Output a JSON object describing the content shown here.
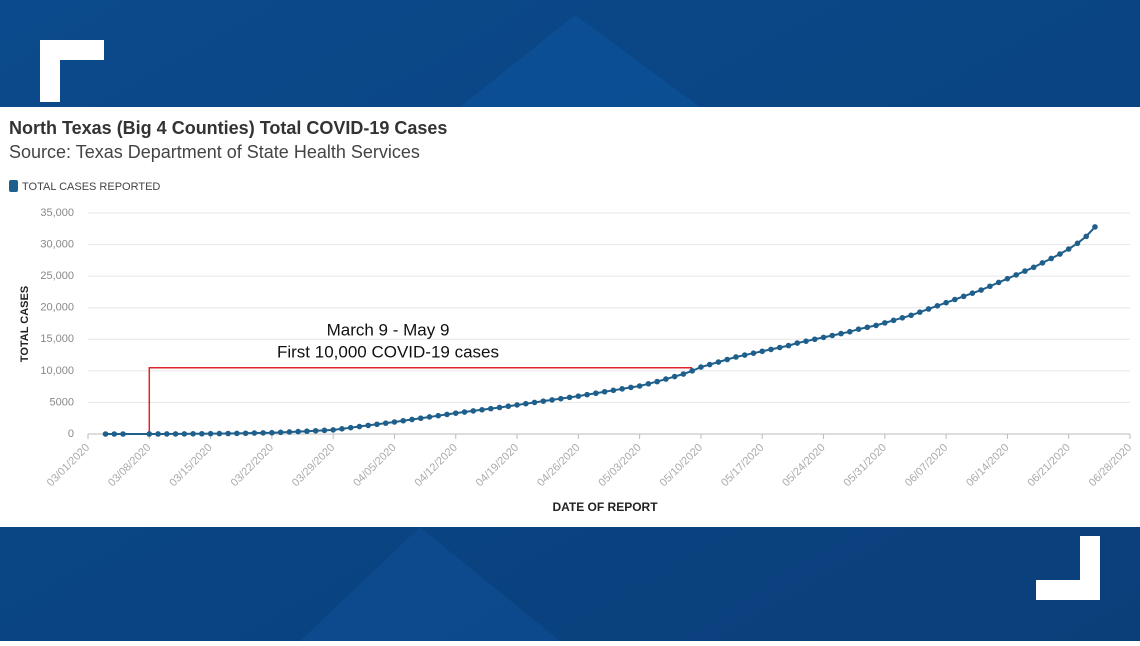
{
  "chart_data": {
    "type": "line",
    "title": "North Texas (Big 4 Counties) Total COVID-19 Cases",
    "subtitle": "Source: Texas Department of State Health Services",
    "x_label": "DATE OF REPORT",
    "y_label": "TOTAL CASES",
    "annotation": {
      "lines": [
        "March 9 - May 9",
        "First 10,000 COVID-19 cases"
      ],
      "x_start": "03/08/2020",
      "x_end": "05/09/2020",
      "y": 10500,
      "color": "#e0242b"
    },
    "x": [
      "03/03/2020",
      "03/04/2020",
      "03/05/2020",
      "03/08/2020",
      "03/09/2020",
      "03/10/2020",
      "03/11/2020",
      "03/12/2020",
      "03/13/2020",
      "03/14/2020",
      "03/15/2020",
      "03/16/2020",
      "03/17/2020",
      "03/18/2020",
      "03/19/2020",
      "03/20/2020",
      "03/21/2020",
      "03/22/2020",
      "03/23/2020",
      "03/24/2020",
      "03/25/2020",
      "03/26/2020",
      "03/27/2020",
      "03/28/2020",
      "03/29/2020",
      "03/30/2020",
      "03/31/2020",
      "04/01/2020",
      "04/02/2020",
      "04/03/2020",
      "04/04/2020",
      "04/05/2020",
      "04/06/2020",
      "04/07/2020",
      "04/08/2020",
      "04/09/2020",
      "04/10/2020",
      "04/11/2020",
      "04/12/2020",
      "04/13/2020",
      "04/14/2020",
      "04/15/2020",
      "04/16/2020",
      "04/17/2020",
      "04/18/2020",
      "04/19/2020",
      "04/20/2020",
      "04/21/2020",
      "04/22/2020",
      "04/23/2020",
      "04/24/2020",
      "04/25/2020",
      "04/26/2020",
      "04/27/2020",
      "04/28/2020",
      "04/29/2020",
      "04/30/2020",
      "05/01/2020",
      "05/02/2020",
      "05/03/2020",
      "05/04/2020",
      "05/05/2020",
      "05/06/2020",
      "05/07/2020",
      "05/08/2020",
      "05/09/2020",
      "05/10/2020",
      "05/11/2020",
      "05/12/2020",
      "05/13/2020",
      "05/14/2020",
      "05/15/2020",
      "05/16/2020",
      "05/17/2020",
      "05/18/2020",
      "05/19/2020",
      "05/20/2020",
      "05/21/2020",
      "05/22/2020",
      "05/23/2020",
      "05/24/2020",
      "05/25/2020",
      "05/26/2020",
      "05/27/2020",
      "05/28/2020",
      "05/29/2020",
      "05/30/2020",
      "05/31/2020",
      "06/01/2020",
      "06/02/2020",
      "06/03/2020",
      "06/04/2020",
      "06/05/2020",
      "06/06/2020",
      "06/07/2020",
      "06/08/2020",
      "06/09/2020",
      "06/10/2020",
      "06/11/2020",
      "06/12/2020",
      "06/13/2020",
      "06/14/2020",
      "06/15/2020",
      "06/16/2020",
      "06/17/2020",
      "06/18/2020",
      "06/19/2020",
      "06/20/2020",
      "06/21/2020",
      "06/22/2020",
      "06/23/2020",
      "06/24/2020"
    ],
    "series": [
      {
        "name": "TOTAL CASES REPORTED",
        "color": "#1f5f8b",
        "values": [
          0,
          0,
          0,
          2,
          5,
          8,
          12,
          20,
          30,
          40,
          50,
          65,
          80,
          100,
          120,
          150,
          180,
          200,
          260,
          320,
          380,
          440,
          510,
          580,
          650,
          820,
          1000,
          1180,
          1360,
          1540,
          1720,
          1900,
          2100,
          2300,
          2500,
          2700,
          2900,
          3100,
          3300,
          3480,
          3660,
          3840,
          4020,
          4200,
          4400,
          4600,
          4800,
          5000,
          5200,
          5400,
          5600,
          5800,
          6000,
          6230,
          6460,
          6690,
          6920,
          7150,
          7380,
          7600,
          7950,
          8300,
          8700,
          9100,
          9500,
          10000,
          10600,
          11000,
          11400,
          11800,
          12200,
          12500,
          12800,
          13100,
          13400,
          13700,
          14000,
          14400,
          14700,
          15000,
          15300,
          15600,
          15900,
          16200,
          16600,
          16900,
          17200,
          17600,
          18000,
          18400,
          18800,
          19300,
          19800,
          20300,
          20800,
          21300,
          21800,
          22300,
          22800,
          23400,
          24000,
          24600,
          25200,
          25800,
          26400,
          27100,
          27800,
          28500,
          29300,
          30200,
          31300,
          32800
        ]
      }
    ],
    "xlim": [
      "03/01/2020",
      "06/28/2020"
    ],
    "xticks": [
      "03/01/2020",
      "03/08/2020",
      "03/15/2020",
      "03/22/2020",
      "03/29/2020",
      "04/05/2020",
      "04/12/2020",
      "04/19/2020",
      "04/26/2020",
      "05/03/2020",
      "05/10/2020",
      "05/17/2020",
      "05/24/2020",
      "05/31/2020",
      "06/07/2020",
      "06/14/2020",
      "06/21/2020",
      "06/28/2020"
    ],
    "ylim": [
      0,
      35000
    ],
    "yticks": [
      0,
      5000,
      {
        "value": 10000,
        "label": "10,000"
      },
      {
        "value": 15000,
        "label": "15,000"
      },
      {
        "value": 20000,
        "label": "20,000"
      },
      {
        "value": 25000,
        "label": "25,000"
      },
      {
        "value": 30000,
        "label": "30,000"
      },
      {
        "value": 35000,
        "label": "35,000"
      }
    ],
    "grid": true
  }
}
